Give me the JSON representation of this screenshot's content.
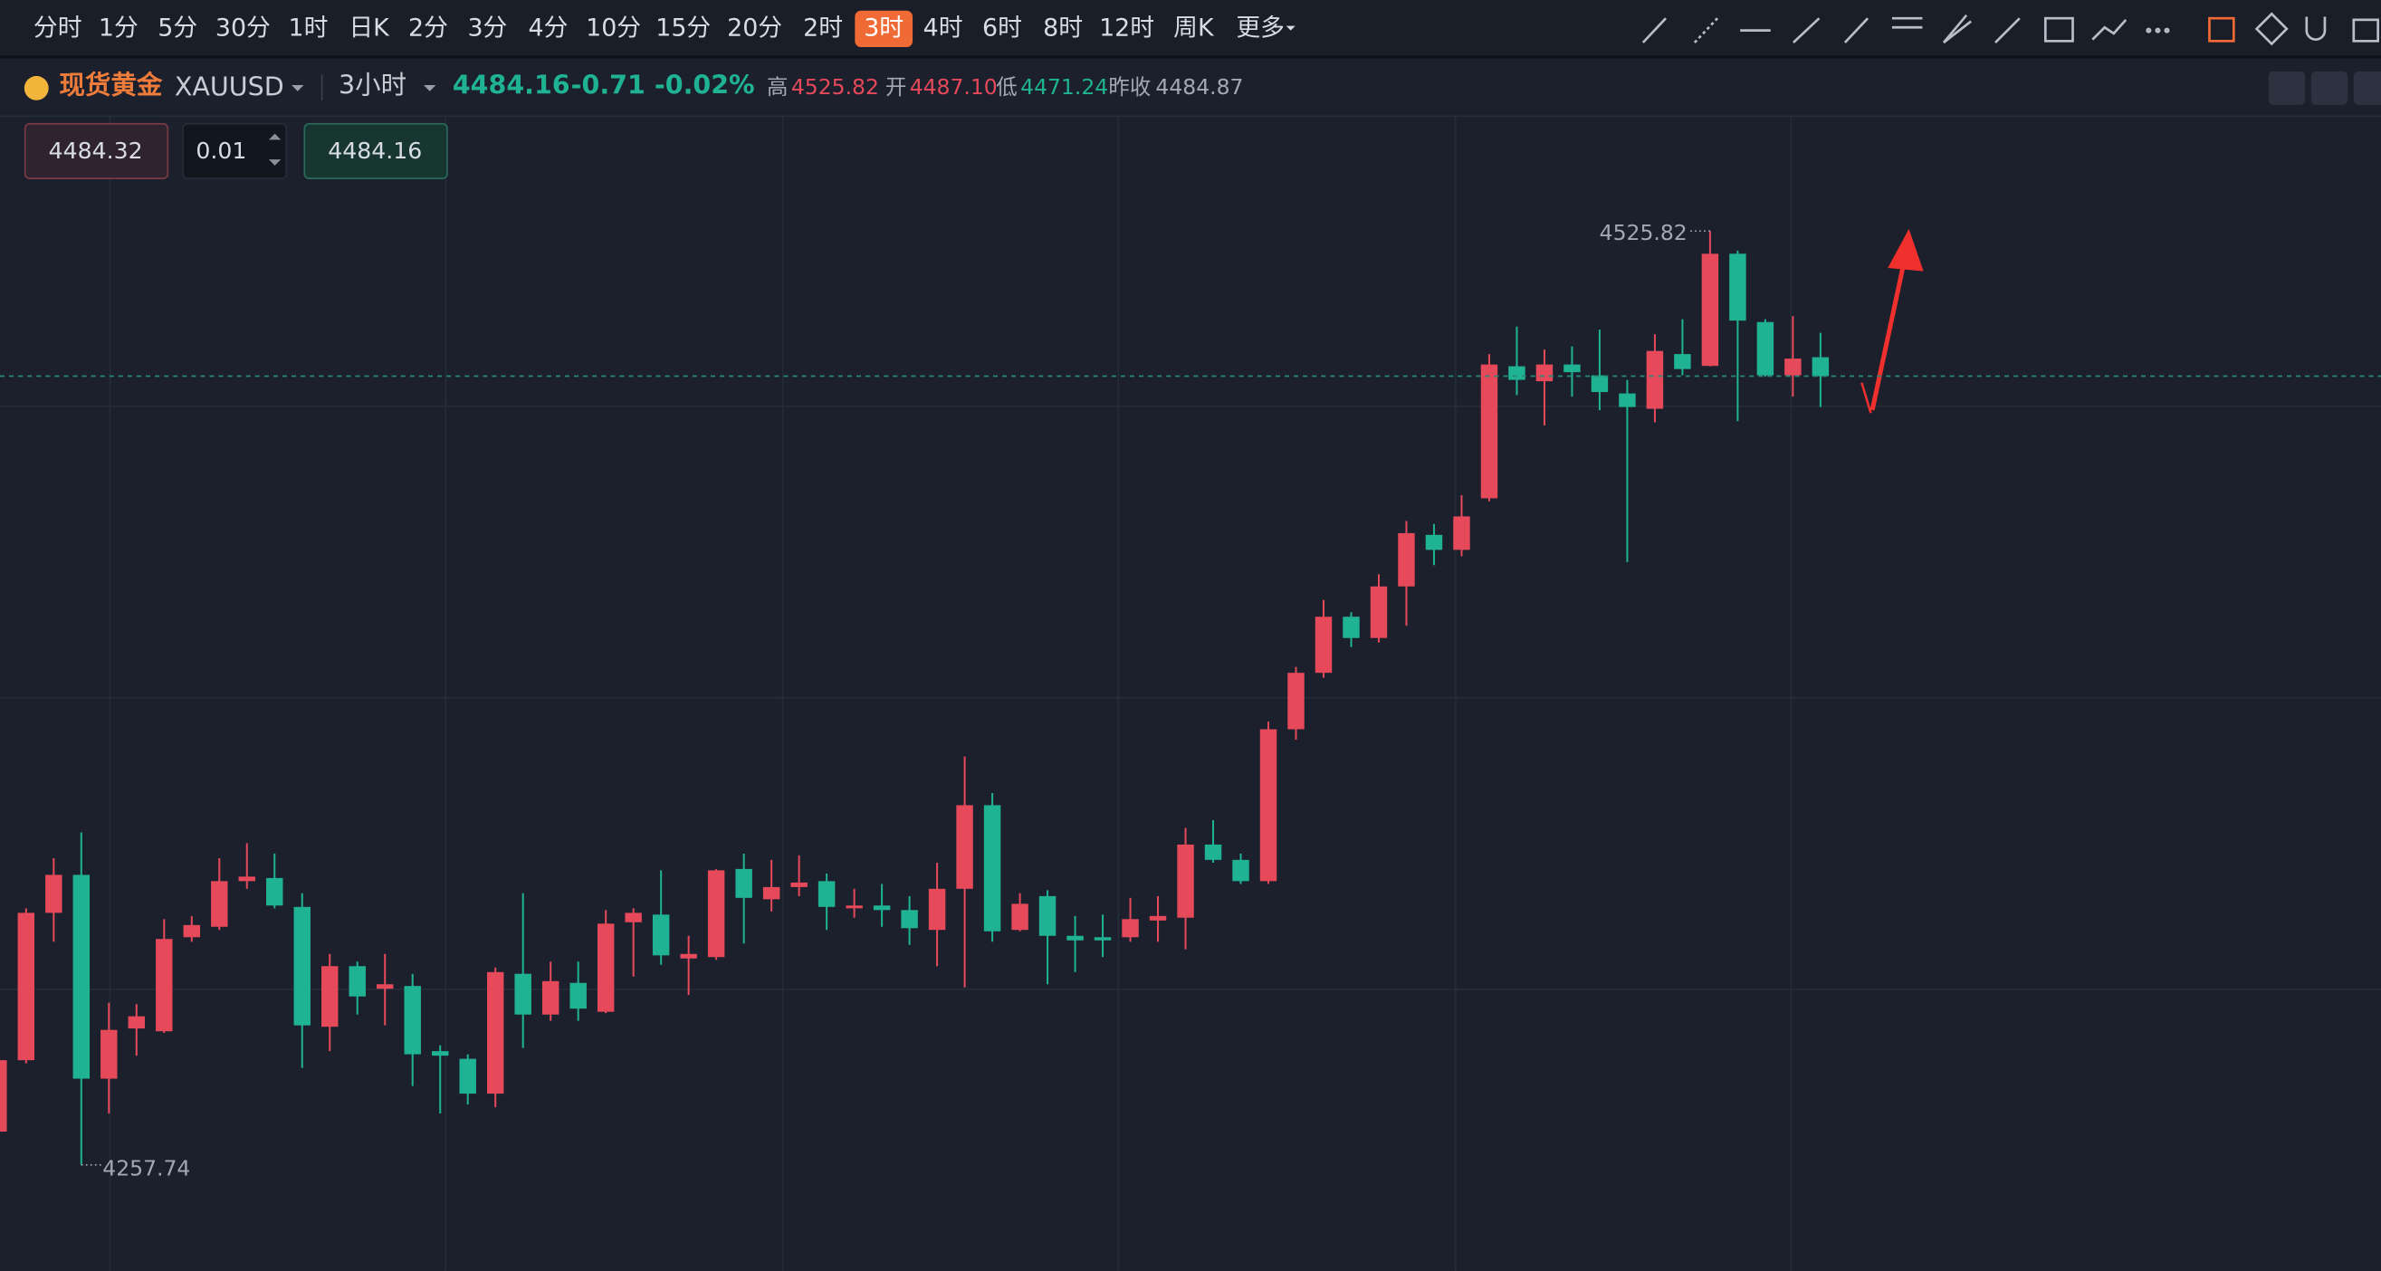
{
  "toolbar": {
    "timeframes": [
      "分时",
      "1分",
      "5分",
      "30分",
      "1时",
      "日K",
      "2分",
      "3分",
      "4分",
      "10分",
      "15分",
      "20分",
      "2时",
      "3时",
      "4时",
      "6时",
      "8时",
      "12时",
      "周K"
    ],
    "active": 13,
    "more": "更多"
  },
  "quote": {
    "name": "现货黄金",
    "symbol": "XAUUSD",
    "period": "3小时",
    "price": "4484.16",
    "change": "-0.71",
    "change_pct": "-0.02%",
    "high_label": "高",
    "high": "4525.82",
    "open_label": "开",
    "open": "4487.10",
    "low_label": "低",
    "low": "4471.24",
    "prev_close_label": "昨收",
    "prev_close": "4484.87"
  },
  "order": {
    "sell": "4484.32",
    "lots": "0.01",
    "buy": "4484.16"
  },
  "chart_data": {
    "type": "candlestick",
    "open": [
      4267.3,
      4287.8,
      4330.1,
      4341.0,
      4282.5,
      4296.9,
      4296.1,
      4323.1,
      4326.1,
      4339.2,
      4340.1,
      4331.8,
      4297.4,
      4314.8,
      4308.3,
      4309.1,
      4290.4,
      4288.2,
      4278.2,
      4312.6,
      4300.9,
      4310.0,
      4301.7,
      4327.4,
      4329.6,
      4317.0,
      4317.4,
      4342.7,
      4334.0,
      4337.5,
      4339.2,
      4331.4,
      4332.2,
      4330.9,
      4325.2,
      4337.0,
      4361.0,
      4325.2,
      4334.9,
      4323.5,
      4323.1,
      4323.1,
      4327.9,
      4328.7,
      4349.7,
      4345.3,
      4339.2,
      4382.8,
      4399.0,
      4415.1,
      4409.0,
      4423.8,
      4438.6,
      4434.3,
      4449.1,
      4487.0,
      4482.7,
      4487.5,
      4484.4,
      4479.2,
      4474.8,
      4490.5,
      4487.1,
      4519.3,
      4499.7,
      4484.4,
      4489.6
    ],
    "high": [
      4289.1,
      4331.4,
      4345.8,
      4353.2,
      4304.3,
      4303.9,
      4328.3,
      4329.2,
      4345.8,
      4350.1,
      4347.1,
      4335.7,
      4318.3,
      4316.1,
      4318.3,
      4312.6,
      4292.1,
      4289.5,
      4314.4,
      4335.7,
      4316.1,
      4316.1,
      4330.9,
      4331.4,
      4342.3,
      4323.5,
      4342.7,
      4347.1,
      4345.3,
      4346.6,
      4341.4,
      4337.0,
      4338.4,
      4334.9,
      4344.5,
      4375.0,
      4364.5,
      4335.7,
      4336.6,
      4329.2,
      4329.6,
      4334.4,
      4334.9,
      4354.5,
      4356.7,
      4347.1,
      4385.0,
      4400.7,
      4419.9,
      4416.4,
      4427.3,
      4442.6,
      4441.7,
      4450.0,
      4490.5,
      4498.4,
      4491.8,
      4492.7,
      4497.5,
      4483.1,
      4496.2,
      4500.5,
      4525.82,
      4520.2,
      4500.5,
      4501.4,
      4496.6
    ],
    "low": [
      4266.0,
      4286.9,
      4321.8,
      4257.74,
      4272.5,
      4289.1,
      4295.6,
      4321.8,
      4325.2,
      4337.0,
      4331.4,
      4285.6,
      4290.4,
      4300.9,
      4297.8,
      4280.4,
      4272.5,
      4275.1,
      4274.3,
      4291.3,
      4299.1,
      4299.1,
      4301.3,
      4311.8,
      4315.2,
      4306.5,
      4316.6,
      4321.3,
      4330.5,
      4334.9,
      4325.2,
      4328.7,
      4326.1,
      4320.9,
      4314.8,
      4308.7,
      4321.8,
      4324.8,
      4309.6,
      4313.1,
      4317.4,
      4321.8,
      4321.8,
      4319.6,
      4344.5,
      4338.4,
      4338.4,
      4379.8,
      4397.6,
      4406.4,
      4407.7,
      4412.5,
      4429.9,
      4432.5,
      4448.2,
      4478.7,
      4470.0,
      4478.3,
      4474.4,
      4430.8,
      4470.9,
      4484.4,
      4487.0,
      4471.24,
      4484.0,
      4478.3,
      4475.3
    ],
    "close": [
      4287.8,
      4330.1,
      4341.0,
      4282.5,
      4296.5,
      4300.4,
      4322.6,
      4326.6,
      4339.2,
      4340.5,
      4332.2,
      4297.8,
      4314.8,
      4306.1,
      4309.6,
      4289.5,
      4289.1,
      4278.2,
      4313.1,
      4300.9,
      4310.5,
      4302.6,
      4327.0,
      4330.1,
      4317.9,
      4318.3,
      4342.3,
      4334.4,
      4337.5,
      4338.8,
      4331.8,
      4332.2,
      4330.9,
      4325.7,
      4337.0,
      4361.0,
      4324.8,
      4332.7,
      4323.5,
      4322.2,
      4322.2,
      4328.3,
      4329.2,
      4349.7,
      4345.3,
      4339.2,
      4382.8,
      4399.0,
      4415.1,
      4409.0,
      4423.8,
      4439.1,
      4434.3,
      4443.9,
      4487.5,
      4483.1,
      4487.5,
      4485.3,
      4479.6,
      4475.3,
      4491.4,
      4486.2,
      4519.3,
      4500.1,
      4484.4,
      4489.2,
      4484.16
    ],
    "ylim": [
      4227.3,
      4559.0
    ],
    "up_color": "#e5495a",
    "down_color": "#1fb393"
  }
}
